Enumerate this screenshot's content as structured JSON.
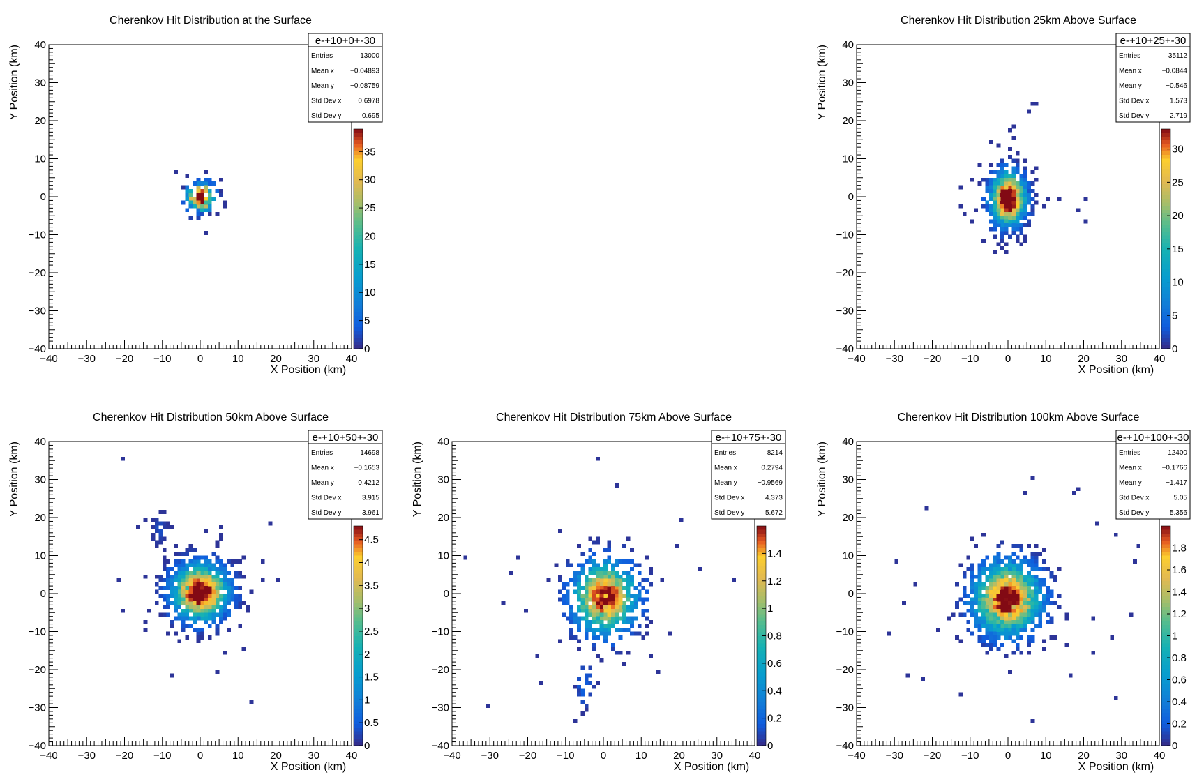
{
  "chart_data": [
    {
      "type": "heatmap",
      "title": "Cherenkov Hit Distribution at the Surface",
      "xlabel": "X Position (km)",
      "ylabel": "Y Position (km)",
      "xlim": [
        -40,
        40
      ],
      "ylim": [
        -40,
        40
      ],
      "x_ticks": [
        "−40",
        "−30",
        "−20",
        "−10",
        "0",
        "10",
        "20",
        "30",
        "40"
      ],
      "y_ticks": [
        "−40",
        "−30",
        "−20",
        "−10",
        "0",
        "10",
        "20",
        "30",
        "40"
      ],
      "stats": {
        "name": "e-+10+0+-30",
        "rows": [
          [
            "Entries",
            "13000"
          ],
          [
            "Mean x",
            "−0.04893"
          ],
          [
            "Mean y",
            "−0.08759"
          ],
          [
            "Std Dev x",
            "0.6978"
          ],
          [
            "Std Dev y",
            "0.695"
          ]
        ]
      },
      "colorbar": {
        "min": 0,
        "max": 39,
        "ticks": [
          "0",
          "5",
          "10",
          "15",
          "20",
          "25",
          "30",
          "35"
        ]
      },
      "blobs": [
        {
          "cx": 0,
          "cy": 0,
          "sx": 2.2,
          "sy": 2.2,
          "n": 130,
          "peak": 39
        }
      ],
      "outliers": [
        [
          -6.5,
          6.5
        ],
        [
          1.5,
          6
        ],
        [
          2.5,
          -4.5
        ],
        [
          1.5,
          -9.5
        ],
        [
          6.5,
          -1.5
        ],
        [
          5.5,
          1.5
        ],
        [
          -4.5,
          2.5
        ]
      ]
    },
    {
      "type": "heatmap",
      "title": "Cherenkov Hit Distribution 25km Above Surface",
      "xlabel": "X Position (km)",
      "ylabel": "Y Position (km)",
      "xlim": [
        -40,
        40
      ],
      "ylim": [
        -40,
        40
      ],
      "x_ticks": [
        "−40",
        "−30",
        "−20",
        "−10",
        "0",
        "10",
        "20",
        "30",
        "40"
      ],
      "y_ticks": [
        "−40",
        "−30",
        "−20",
        "−10",
        "0",
        "10",
        "20",
        "30",
        "40"
      ],
      "stats": {
        "name": "e-+10+25+-30",
        "rows": [
          [
            "Entries",
            "35112"
          ],
          [
            "Mean x",
            "−0.0844"
          ],
          [
            "Mean y",
            "−0.546"
          ],
          [
            "Std Dev x",
            "1.573"
          ],
          [
            "Std Dev y",
            "2.719"
          ]
        ]
      },
      "colorbar": {
        "min": 0,
        "max": 33,
        "ticks": [
          "0",
          "5",
          "10",
          "15",
          "20",
          "25",
          "30"
        ]
      },
      "blobs": [
        {
          "cx": 0,
          "cy": -0.5,
          "sx": 2.8,
          "sy": 4.2,
          "n": 700,
          "peak": 33
        }
      ],
      "outliers": [
        [
          6.5,
          24.5
        ],
        [
          5.5,
          22.5
        ],
        [
          7.5,
          24.5
        ],
        [
          1.5,
          18.5
        ],
        [
          0.5,
          17.5
        ],
        [
          1.5,
          15.5
        ],
        [
          -2.5,
          13.5
        ],
        [
          4.5,
          9.5
        ],
        [
          10.5,
          -0.5
        ],
        [
          13.5,
          -0.5
        ],
        [
          18.5,
          -3.5
        ],
        [
          20.5,
          -0.5
        ],
        [
          20.5,
          -6.5
        ],
        [
          -6.5,
          -11.5
        ],
        [
          -12.5,
          2.5
        ],
        [
          -12.5,
          -2.5
        ],
        [
          7.5,
          7.5
        ]
      ]
    },
    {
      "type": "heatmap",
      "title": "Cherenkov Hit Distribution 50km Above Surface",
      "xlabel": "X Position (km)",
      "ylabel": "Y Position (km)",
      "xlim": [
        -40,
        40
      ],
      "ylim": [
        -40,
        40
      ],
      "x_ticks": [
        "−40",
        "−30",
        "−20",
        "−10",
        "0",
        "10",
        "20",
        "30",
        "40"
      ],
      "y_ticks": [
        "−40",
        "−30",
        "−20",
        "−10",
        "0",
        "10",
        "20",
        "30",
        "40"
      ],
      "stats": {
        "name": "e-+10+50+-30",
        "rows": [
          [
            "Entries",
            "14698"
          ],
          [
            "Mean x",
            "−0.1653"
          ],
          [
            "Mean y",
            "0.4212"
          ],
          [
            "Std Dev x",
            "3.915"
          ],
          [
            "Std Dev y",
            "3.961"
          ]
        ]
      },
      "colorbar": {
        "min": 0,
        "max": 4.8,
        "ticks": [
          "0",
          "0.5",
          "1",
          "1.5",
          "2",
          "2.5",
          "3",
          "3.5",
          "4",
          "4.5"
        ]
      },
      "blobs": [
        {
          "cx": 0,
          "cy": 0.4,
          "sx": 4.4,
          "sy": 4.4,
          "n": 1100,
          "peak": 4.7
        },
        {
          "cx": -11,
          "cy": 17,
          "sx": 1.6,
          "sy": 2.6,
          "n": 30,
          "peak": 0.3
        }
      ],
      "outliers": [
        [
          -20.5,
          35.5
        ],
        [
          13.5,
          -28.5
        ],
        [
          -7.5,
          -21.5
        ],
        [
          4.5,
          -20.5
        ],
        [
          18.5,
          18.5
        ],
        [
          20.5,
          3.5
        ],
        [
          -21.5,
          3.5
        ],
        [
          -20.5,
          -4.5
        ],
        [
          -16.5,
          17.5
        ],
        [
          -14.5,
          19.5
        ],
        [
          5.5,
          17.5
        ],
        [
          6.5,
          -15.5
        ],
        [
          11.5,
          -14.5
        ],
        [
          -14.5,
          -9.5
        ],
        [
          16.5,
          8.5
        ]
      ]
    },
    {
      "type": "heatmap",
      "title": "Cherenkov Hit Distribution 75km Above Surface",
      "xlabel": "X Position (km)",
      "ylabel": "Y Position (km)",
      "xlim": [
        -40,
        40
      ],
      "ylim": [
        -40,
        40
      ],
      "x_ticks": [
        "−40",
        "−30",
        "−20",
        "−10",
        "0",
        "10",
        "20",
        "30",
        "40"
      ],
      "y_ticks": [
        "−40",
        "−30",
        "−20",
        "−10",
        "0",
        "10",
        "20",
        "30",
        "40"
      ],
      "stats": {
        "name": "e-+10+75+-30",
        "rows": [
          [
            "Entries",
            "8214"
          ],
          [
            "Mean x",
            "0.2794"
          ],
          [
            "Mean y",
            "−0.9569"
          ],
          [
            "Std Dev x",
            "4.373"
          ],
          [
            "Std Dev y",
            "5.672"
          ]
        ]
      },
      "colorbar": {
        "min": 0,
        "max": 1.6,
        "ticks": [
          "0",
          "0.2",
          "0.4",
          "0.6",
          "0.8",
          "1",
          "1.2",
          "1.4"
        ]
      },
      "blobs": [
        {
          "cx": 0.3,
          "cy": -1,
          "sx": 5.0,
          "sy": 5.6,
          "n": 650,
          "peak": 1.5
        },
        {
          "cx": -5,
          "cy": -24,
          "sx": 1.6,
          "sy": 3.5,
          "n": 22,
          "peak": 0.2
        }
      ],
      "outliers": [
        [
          -1.5,
          35.5
        ],
        [
          3.5,
          28.5
        ],
        [
          -36.5,
          9.5
        ],
        [
          -30.5,
          -29.5
        ],
        [
          34.5,
          3.5
        ],
        [
          25.5,
          6.5
        ],
        [
          20.5,
          19.5
        ],
        [
          -24.5,
          5.5
        ],
        [
          -22.5,
          9.5
        ],
        [
          -26.5,
          -2.5
        ],
        [
          -17.5,
          -16.5
        ],
        [
          -16.5,
          -23.5
        ],
        [
          -7.5,
          -33.5
        ],
        [
          -5.5,
          -31.5
        ],
        [
          14.5,
          -20.5
        ],
        [
          12.5,
          -16.5
        ],
        [
          17.5,
          -10.5
        ],
        [
          -20.5,
          -4.5
        ],
        [
          19.5,
          12.5
        ]
      ]
    },
    {
      "type": "heatmap",
      "title": "Cherenkov Hit Distribution 100km Above Surface",
      "xlabel": "X Position (km)",
      "ylabel": "Y Position (km)",
      "xlim": [
        -40,
        40
      ],
      "ylim": [
        -40,
        40
      ],
      "x_ticks": [
        "−40",
        "−30",
        "−20",
        "−10",
        "0",
        "10",
        "20",
        "30",
        "40"
      ],
      "y_ticks": [
        "−40",
        "−30",
        "−20",
        "−10",
        "0",
        "10",
        "20",
        "30",
        "40"
      ],
      "stats": {
        "name": "e-+10+100+-30",
        "rows": [
          [
            "Entries",
            "12400"
          ],
          [
            "Mean x",
            "−0.1766"
          ],
          [
            "Mean y",
            "−1.417"
          ],
          [
            "Std Dev x",
            "5.05"
          ],
          [
            "Std Dev y",
            "5.356"
          ]
        ]
      },
      "colorbar": {
        "min": 0,
        "max": 2.0,
        "ticks": [
          "0",
          "0.2",
          "0.4",
          "0.6",
          "0.8",
          "1",
          "1.2",
          "1.4",
          "1.6",
          "1.8"
        ]
      },
      "blobs": [
        {
          "cx": -0.2,
          "cy": -1.4,
          "sx": 5.4,
          "sy": 5.6,
          "n": 1100,
          "peak": 1.95
        }
      ],
      "outliers": [
        [
          6.5,
          30.5
        ],
        [
          -21.5,
          22.5
        ],
        [
          4.5,
          26.5
        ],
        [
          17.5,
          26.5
        ],
        [
          18.5,
          27.5
        ],
        [
          28.5,
          15.5
        ],
        [
          33.5,
          8.5
        ],
        [
          34.5,
          12.5
        ],
        [
          -29.5,
          8.5
        ],
        [
          -31.5,
          -10.5
        ],
        [
          32.5,
          -5.5
        ],
        [
          28.5,
          -27.5
        ],
        [
          6.5,
          -33.5
        ],
        [
          -12.5,
          -26.5
        ],
        [
          -22.5,
          -22.5
        ],
        [
          -26.5,
          -21.5
        ],
        [
          -24.5,
          2.5
        ],
        [
          -27.5,
          -2.5
        ],
        [
          16.5,
          -21.5
        ],
        [
          22.5,
          -15.5
        ],
        [
          27.5,
          -11.5
        ],
        [
          23.5,
          18.5
        ]
      ]
    }
  ]
}
